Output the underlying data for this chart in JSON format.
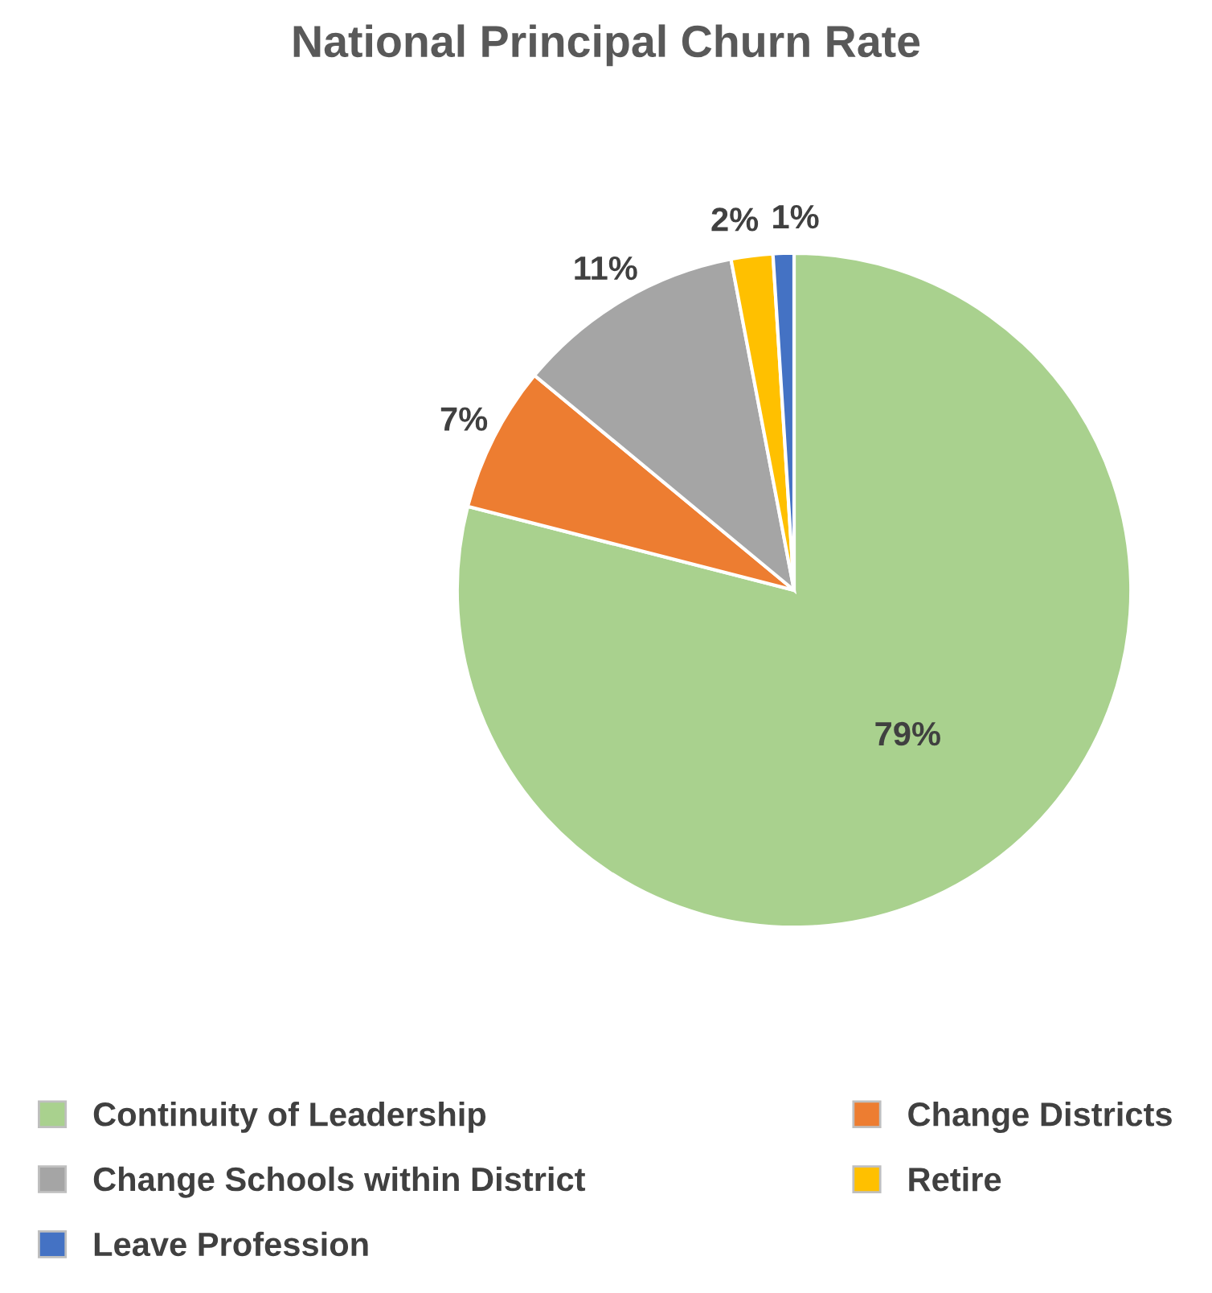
{
  "chart_data": {
    "type": "pie",
    "title": "National Principal Churn Rate",
    "categories": [
      "Continuity of Leadership",
      "Change Districts",
      "Change Schools within District",
      "Retire",
      "Leave Profession"
    ],
    "values": [
      79,
      7,
      11,
      2,
      1
    ],
    "colors": [
      "#a9d18e",
      "#ed7d31",
      "#a5a5a5",
      "#ffc000",
      "#4472c4"
    ],
    "value_labels": [
      "79%",
      "7%",
      "11%",
      "2%",
      "1%"
    ],
    "legend": "bottom"
  }
}
